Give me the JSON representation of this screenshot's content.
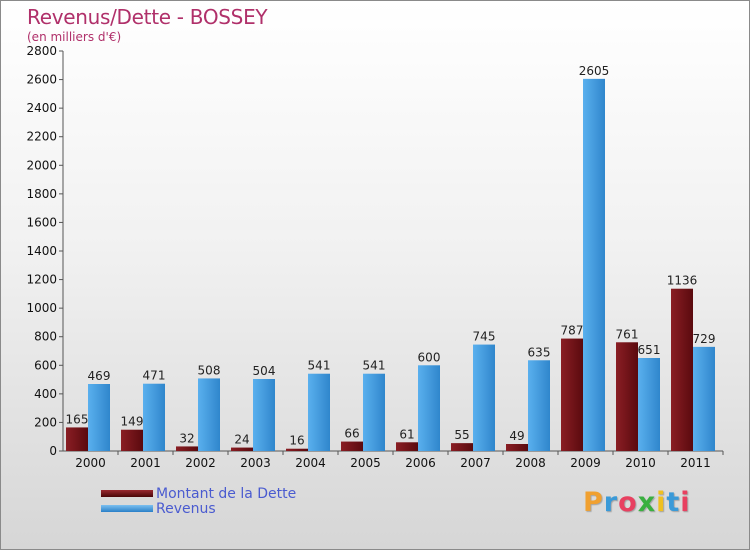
{
  "header": {
    "title": "Revenus/Dette - BOSSEY",
    "subtitle": "(en milliers d'€)"
  },
  "colors": {
    "dette": "#6b1015",
    "revenus": "#4aa0e0",
    "title": "#b0306a",
    "legend_text": "#4a5bd0"
  },
  "legend": {
    "dette_label": "Montant de la Dette",
    "revenus_label": "Revenus"
  },
  "logo": {
    "letters": [
      "P",
      "r",
      "o",
      "x",
      "i",
      "t",
      "i"
    ],
    "colors": [
      "#f0a030",
      "#3a9ad8",
      "#e84060",
      "#3ab040",
      "#f0c020",
      "#3a9ad8",
      "#e84060"
    ]
  },
  "chart_data": {
    "type": "bar",
    "title": "Revenus/Dette - BOSSEY",
    "subtitle": "(en milliers d'€)",
    "categories": [
      "2000",
      "2001",
      "2002",
      "2003",
      "2004",
      "2005",
      "2006",
      "2007",
      "2008",
      "2009",
      "2010",
      "2011"
    ],
    "series": [
      {
        "name": "Montant de la Dette",
        "values": [
          165,
          149,
          32,
          24,
          16,
          66,
          61,
          55,
          49,
          787,
          761,
          1136
        ]
      },
      {
        "name": "Revenus",
        "values": [
          469,
          471,
          508,
          504,
          541,
          541,
          600,
          745,
          635,
          2605,
          651,
          729
        ]
      }
    ],
    "ylim": [
      0,
      2800
    ],
    "yticks": [
      0,
      200,
      400,
      600,
      800,
      1000,
      1200,
      1400,
      1600,
      1800,
      2000,
      2200,
      2400,
      2600,
      2800
    ],
    "grid": false,
    "legend_position": "bottom-left"
  }
}
